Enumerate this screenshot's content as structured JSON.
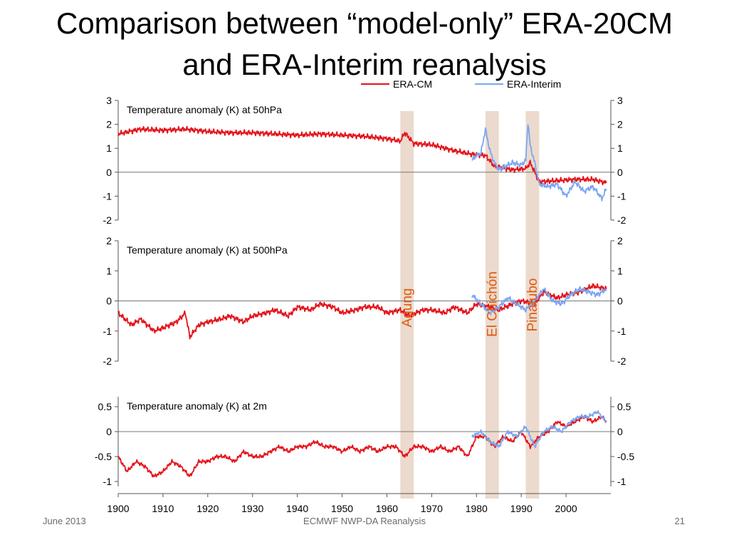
{
  "slide": {
    "title_line1": "Comparison between “model-only” ERA-20CM",
    "title_line2": "and ERA-Interim reanalysis",
    "footer_left": "June 2013",
    "footer_center": "ECMWF NWP-DA Reanalysis",
    "footer_right": "21"
  },
  "legend": {
    "placement": "top-right",
    "entries": [
      {
        "label": "ERA-CM",
        "color": "#e3131b"
      },
      {
        "label": "ERA-Interim",
        "color": "#7aa6f2"
      }
    ]
  },
  "eruptions": [
    {
      "label": "Agung",
      "start": 1963,
      "end": 1966
    },
    {
      "label": "El Chichón",
      "start": 1982,
      "end": 1985
    },
    {
      "label": "Pinatubo",
      "start": 1991,
      "end": 1994
    }
  ],
  "colors": {
    "era_cm": "#e3131b",
    "era_interim": "#7aa6f2",
    "eruption_band": "#e8d3c4",
    "eruption_label": "#e05a10",
    "axis": "#555555",
    "zero_line": "#777777"
  },
  "chart_data": [
    {
      "type": "line",
      "title": "Temperature anomaly (K) at 50hPa",
      "xlim": [
        1900,
        2010
      ],
      "ylim": [
        -2,
        3
      ],
      "yticks": [
        "-2",
        "-1",
        "0",
        "1",
        "2",
        "3"
      ],
      "xticks": [],
      "grid": false,
      "series": [
        {
          "name": "ERA-CM",
          "x": [
            1900,
            1905,
            1910,
            1915,
            1920,
            1925,
            1930,
            1935,
            1940,
            1945,
            1950,
            1955,
            1960,
            1963,
            1964,
            1966,
            1970,
            1975,
            1979,
            1982,
            1984,
            1988,
            1991,
            1992,
            1994,
            1998,
            2002,
            2006,
            2009
          ],
          "values": [
            1.6,
            1.8,
            1.75,
            1.8,
            1.7,
            1.65,
            1.65,
            1.6,
            1.55,
            1.6,
            1.55,
            1.5,
            1.4,
            1.3,
            1.65,
            1.2,
            1.15,
            0.9,
            0.75,
            0.7,
            0.25,
            0.1,
            0.15,
            0.4,
            -0.4,
            -0.35,
            -0.3,
            -0.3,
            -0.45
          ]
        },
        {
          "name": "ERA-Interim",
          "x": [
            1979,
            1980,
            1981,
            1982,
            1983,
            1984,
            1985,
            1986,
            1988,
            1990,
            1991,
            1991.5,
            1992,
            1993,
            1994,
            1996,
            1998,
            2000,
            2002,
            2004,
            2006,
            2008,
            2009
          ],
          "values": [
            0.5,
            0.7,
            0.8,
            1.8,
            0.9,
            0.4,
            0.1,
            0.2,
            0.4,
            0.3,
            0.5,
            2.1,
            1.1,
            0.4,
            -0.5,
            -0.6,
            -0.5,
            -1.0,
            -0.4,
            -0.8,
            -0.6,
            -1.1,
            -0.7
          ]
        }
      ]
    },
    {
      "type": "line",
      "title": "Temperature anomaly (K) at 500hPa",
      "xlim": [
        1900,
        2010
      ],
      "ylim": [
        -2,
        2
      ],
      "yticks": [
        "-2",
        "-1",
        "0",
        "1",
        "2"
      ],
      "xticks": [],
      "grid": false,
      "series": [
        {
          "name": "ERA-CM",
          "x": [
            1900,
            1903,
            1905,
            1908,
            1910,
            1913,
            1915,
            1916,
            1918,
            1920,
            1923,
            1925,
            1928,
            1930,
            1933,
            1935,
            1938,
            1940,
            1943,
            1945,
            1948,
            1950,
            1953,
            1955,
            1958,
            1960,
            1963,
            1965,
            1968,
            1970,
            1973,
            1975,
            1978,
            1980,
            1983,
            1985,
            1988,
            1990,
            1993,
            1995,
            1998,
            2000,
            2003,
            2006,
            2009
          ],
          "values": [
            -0.4,
            -0.8,
            -0.6,
            -1.0,
            -0.9,
            -0.7,
            -0.4,
            -1.2,
            -0.8,
            -0.7,
            -0.6,
            -0.5,
            -0.7,
            -0.5,
            -0.4,
            -0.3,
            -0.5,
            -0.2,
            -0.3,
            -0.1,
            -0.2,
            -0.4,
            -0.3,
            -0.2,
            -0.2,
            -0.4,
            -0.3,
            -0.5,
            -0.3,
            -0.3,
            -0.4,
            -0.2,
            -0.4,
            -0.1,
            -0.2,
            -0.3,
            -0.1,
            0.0,
            -0.1,
            0.3,
            0.1,
            0.2,
            0.3,
            0.5,
            0.4
          ]
        },
        {
          "name": "ERA-Interim",
          "x": [
            1979,
            1981,
            1983,
            1985,
            1987,
            1989,
            1991,
            1993,
            1995,
            1997,
            1999,
            2001,
            2003,
            2005,
            2007,
            2009
          ],
          "values": [
            0.2,
            -0.1,
            -0.4,
            -0.2,
            0.1,
            -0.1,
            -0.3,
            0.0,
            0.4,
            0.0,
            -0.1,
            0.2,
            0.4,
            0.3,
            0.2,
            0.4
          ]
        }
      ]
    },
    {
      "type": "line",
      "title": "Temperature anomaly (K) at 2m",
      "xlim": [
        1900,
        2010
      ],
      "ylim": [
        -1.1,
        0.7
      ],
      "yticks": [
        "-1",
        "-0.5",
        "0",
        "0.5"
      ],
      "ytick_values": [
        -1,
        -0.5,
        0,
        0.5
      ],
      "xticks": [
        "1900",
        "1910",
        "1920",
        "1930",
        "1940",
        "1950",
        "1960",
        "1970",
        "1980",
        "1990",
        "2000"
      ],
      "xlabel": "",
      "grid": false,
      "series": [
        {
          "name": "ERA-CM",
          "x": [
            1900,
            1902,
            1904,
            1906,
            1908,
            1910,
            1912,
            1914,
            1916,
            1918,
            1920,
            1922,
            1924,
            1926,
            1928,
            1930,
            1932,
            1934,
            1936,
            1938,
            1940,
            1942,
            1944,
            1946,
            1948,
            1950,
            1952,
            1954,
            1956,
            1958,
            1960,
            1962,
            1964,
            1966,
            1968,
            1970,
            1972,
            1974,
            1976,
            1978,
            1980,
            1982,
            1984,
            1986,
            1988,
            1990,
            1992,
            1994,
            1996,
            1998,
            2000,
            2002,
            2004,
            2006,
            2008,
            2009
          ],
          "values": [
            -0.5,
            -0.8,
            -0.6,
            -0.7,
            -0.9,
            -0.8,
            -0.6,
            -0.7,
            -0.9,
            -0.6,
            -0.6,
            -0.5,
            -0.5,
            -0.6,
            -0.4,
            -0.5,
            -0.5,
            -0.4,
            -0.3,
            -0.4,
            -0.3,
            -0.3,
            -0.2,
            -0.3,
            -0.3,
            -0.4,
            -0.3,
            -0.4,
            -0.3,
            -0.4,
            -0.3,
            -0.3,
            -0.5,
            -0.3,
            -0.3,
            -0.4,
            -0.3,
            -0.4,
            -0.3,
            -0.5,
            -0.1,
            -0.1,
            -0.3,
            -0.1,
            -0.2,
            0.0,
            -0.3,
            -0.1,
            0.0,
            0.2,
            0.1,
            0.2,
            0.3,
            0.2,
            0.3,
            0.2
          ]
        },
        {
          "name": "ERA-Interim",
          "x": [
            1979,
            1981,
            1983,
            1985,
            1987,
            1989,
            1991,
            1993,
            1995,
            1997,
            1999,
            2001,
            2003,
            2005,
            2007,
            2009
          ],
          "values": [
            -0.1,
            0.0,
            -0.2,
            -0.3,
            0.0,
            -0.1,
            0.1,
            -0.3,
            0.0,
            0.1,
            0.0,
            0.2,
            0.3,
            0.3,
            0.4,
            0.2
          ]
        }
      ]
    }
  ]
}
